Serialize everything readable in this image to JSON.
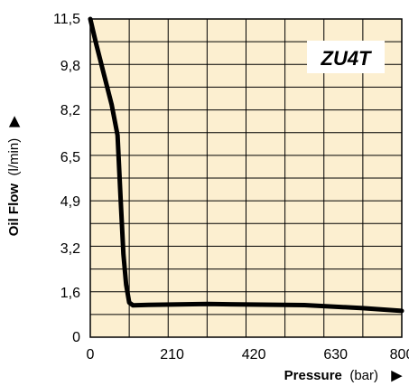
{
  "chart_data": {
    "type": "line",
    "title": "",
    "model_label": "ZU4T",
    "xlabel": {
      "main": "Pressure",
      "unit": "(bar)",
      "arrow": "▶"
    },
    "ylabel": {
      "main": "Oil Flow",
      "unit": "(l/min)",
      "arrow": "▶"
    },
    "x_ticks": [
      {
        "value": 0,
        "label": "0"
      },
      {
        "value": 210,
        "label": "210"
      },
      {
        "value": 420,
        "label": "420"
      },
      {
        "value": 630,
        "label": "630"
      },
      {
        "value": 800,
        "label": "800"
      }
    ],
    "y_ticks": [
      {
        "value": 0,
        "label": "0"
      },
      {
        "value": 1.6,
        "label": "1,6"
      },
      {
        "value": 3.2,
        "label": "3,2"
      },
      {
        "value": 4.9,
        "label": "4,9"
      },
      {
        "value": 6.5,
        "label": "6,5"
      },
      {
        "value": 8.2,
        "label": "8,2"
      },
      {
        "value": 9.8,
        "label": "9,8"
      },
      {
        "value": 11.5,
        "label": "11,5"
      }
    ],
    "xlim": [
      0,
      800
    ],
    "ylim": [
      0,
      11.5
    ],
    "grid": true,
    "background_color": "#fcefd0",
    "line_color": "#000000",
    "series": [
      {
        "x": [
          0,
          15,
          35,
          55,
          70,
          78,
          85,
          92,
          100,
          110,
          150,
          300,
          550,
          700,
          800
        ],
        "y": [
          11.5,
          10.6,
          9.5,
          8.4,
          7.3,
          5.0,
          3.0,
          1.9,
          1.25,
          1.15,
          1.17,
          1.2,
          1.16,
          1.05,
          0.95
        ]
      }
    ]
  }
}
